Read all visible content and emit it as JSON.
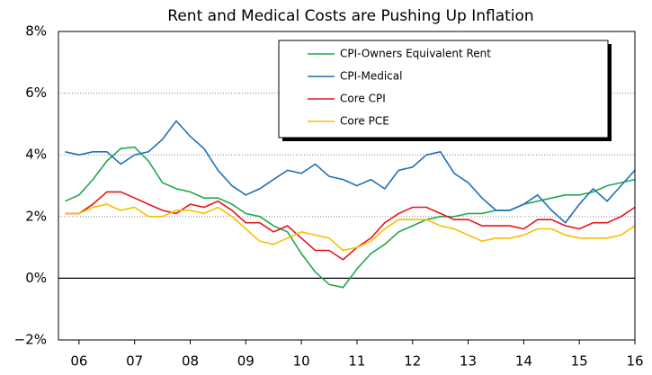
{
  "chart_data": {
    "type": "line",
    "title": "Rent and Medical Costs are Pushing Up Inflation",
    "x": [
      2005.75,
      2006,
      2006.25,
      2006.5,
      2006.75,
      2007,
      2007.25,
      2007.5,
      2007.75,
      2008,
      2008.25,
      2008.5,
      2008.75,
      2009,
      2009.25,
      2009.5,
      2009.75,
      2010,
      2010.25,
      2010.5,
      2010.75,
      2011,
      2011.25,
      2011.5,
      2011.75,
      2012,
      2012.25,
      2012.5,
      2012.75,
      2013,
      2013.25,
      2013.5,
      2013.75,
      2014,
      2014.25,
      2014.5,
      2014.75,
      2015,
      2015.25,
      2015.5,
      2015.75,
      2016
    ],
    "series": [
      {
        "name": "CPI-Owners Equivalent Rent",
        "color": "#22a84a",
        "values": [
          2.5,
          2.7,
          3.2,
          3.8,
          4.2,
          4.25,
          3.8,
          3.1,
          2.9,
          2.8,
          2.6,
          2.6,
          2.4,
          2.1,
          2.0,
          1.7,
          1.5,
          0.8,
          0.2,
          -0.2,
          -0.3,
          0.3,
          0.8,
          1.1,
          1.5,
          1.7,
          1.9,
          2.0,
          2.0,
          2.1,
          2.1,
          2.2,
          2.2,
          2.4,
          2.5,
          2.6,
          2.7,
          2.7,
          2.8,
          3.0,
          3.1,
          3.2
        ]
      },
      {
        "name": "CPI-Medical",
        "color": "#1f6fb8",
        "values": [
          4.1,
          4.0,
          4.1,
          4.1,
          3.7,
          4.0,
          4.1,
          4.5,
          5.1,
          4.6,
          4.2,
          3.5,
          3.0,
          2.7,
          2.9,
          3.2,
          3.5,
          3.4,
          3.7,
          3.3,
          3.2,
          3.0,
          3.2,
          2.9,
          3.5,
          3.6,
          4.0,
          4.1,
          3.4,
          3.1,
          2.6,
          2.2,
          2.2,
          2.4,
          2.7,
          2.2,
          1.8,
          2.4,
          2.9,
          2.5,
          3.0,
          3.5
        ]
      },
      {
        "name": "Core CPI",
        "color": "#e8141c",
        "values": [
          2.1,
          2.1,
          2.4,
          2.8,
          2.8,
          2.6,
          2.4,
          2.2,
          2.1,
          2.4,
          2.3,
          2.5,
          2.2,
          1.8,
          1.8,
          1.5,
          1.7,
          1.3,
          0.9,
          0.9,
          0.6,
          1.0,
          1.3,
          1.8,
          2.1,
          2.3,
          2.3,
          2.1,
          1.9,
          1.9,
          1.7,
          1.7,
          1.7,
          1.6,
          1.9,
          1.9,
          1.7,
          1.6,
          1.8,
          1.8,
          2.0,
          2.3
        ]
      },
      {
        "name": "Core PCE",
        "color": "#f5c000",
        "values": [
          2.1,
          2.1,
          2.3,
          2.4,
          2.2,
          2.3,
          2.0,
          2.0,
          2.2,
          2.2,
          2.1,
          2.3,
          2.0,
          1.6,
          1.2,
          1.1,
          1.3,
          1.5,
          1.4,
          1.3,
          0.9,
          1.0,
          1.2,
          1.6,
          1.9,
          1.9,
          1.9,
          1.7,
          1.6,
          1.4,
          1.2,
          1.3,
          1.3,
          1.4,
          1.6,
          1.6,
          1.4,
          1.3,
          1.3,
          1.3,
          1.4,
          1.7
        ]
      }
    ],
    "xlim": [
      2005.63,
      2016.0
    ],
    "xticks": [
      {
        "value": 2006,
        "label": "06"
      },
      {
        "value": 2007,
        "label": "07"
      },
      {
        "value": 2008,
        "label": "08"
      },
      {
        "value": 2009,
        "label": "09"
      },
      {
        "value": 2010,
        "label": "10"
      },
      {
        "value": 2011,
        "label": "11"
      },
      {
        "value": 2012,
        "label": "12"
      },
      {
        "value": 2013,
        "label": "13"
      },
      {
        "value": 2014,
        "label": "14"
      },
      {
        "value": 2015,
        "label": "15"
      },
      {
        "value": 2016,
        "label": "16"
      }
    ],
    "ylim": [
      -2,
      8
    ],
    "yticks": [
      {
        "value": -2,
        "label": "−2%"
      },
      {
        "value": 0,
        "label": "0%"
      },
      {
        "value": 2,
        "label": "2%"
      },
      {
        "value": 4,
        "label": "4%"
      },
      {
        "value": 6,
        "label": "6%"
      },
      {
        "value": 8,
        "label": "8%"
      }
    ],
    "grid": true,
    "legend": "upper right"
  }
}
